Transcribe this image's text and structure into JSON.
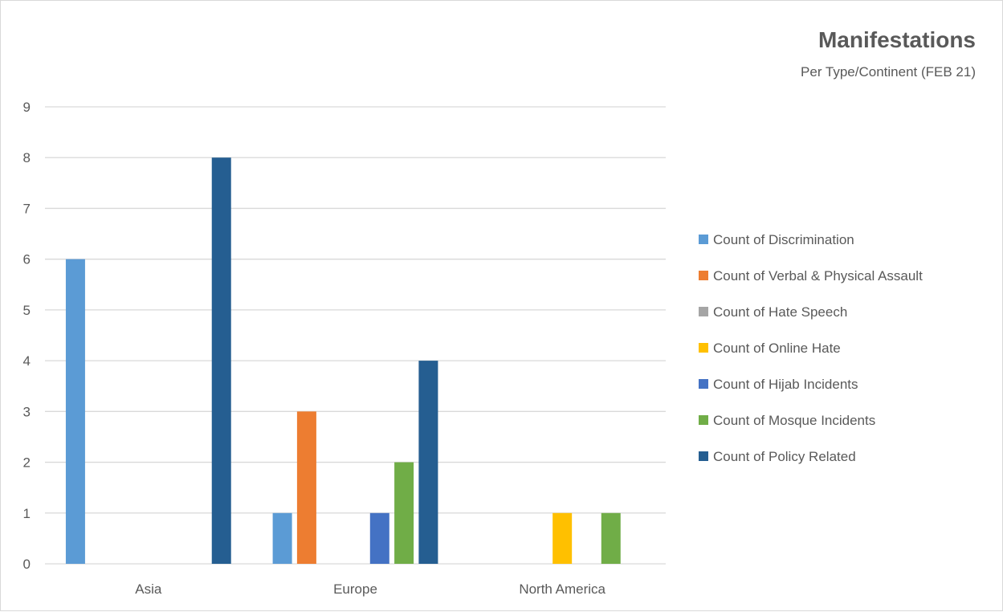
{
  "chart_data": {
    "type": "bar",
    "title": "Manifestations",
    "subtitle": "Per Type/Continent (FEB 21)",
    "xlabel": "",
    "ylabel": "",
    "categories": [
      "Asia",
      "Europe",
      "North America"
    ],
    "ylim": [
      0,
      9
    ],
    "yticks": [
      0,
      1,
      2,
      3,
      4,
      5,
      6,
      7,
      8,
      9
    ],
    "grid": true,
    "legend_position": "right",
    "series": [
      {
        "name": "Count of Discrimination",
        "color": "#5b9bd5",
        "values": [
          6,
          1,
          0
        ]
      },
      {
        "name": "Count of Verbal & Physical Assault",
        "color": "#ed7d31",
        "values": [
          0,
          3,
          0
        ]
      },
      {
        "name": "Count of Hate Speech",
        "color": "#a5a5a5",
        "values": [
          0,
          0,
          0
        ]
      },
      {
        "name": "Count of Online Hate",
        "color": "#ffc000",
        "values": [
          0,
          0,
          1
        ]
      },
      {
        "name": "Count of Hijab Incidents",
        "color": "#4472c4",
        "values": [
          0,
          1,
          0
        ]
      },
      {
        "name": "Count of Mosque Incidents",
        "color": "#70ad47",
        "values": [
          0,
          2,
          1
        ]
      },
      {
        "name": "Count of Policy Related",
        "color": "#255e91",
        "values": [
          8,
          4,
          0
        ]
      }
    ]
  }
}
